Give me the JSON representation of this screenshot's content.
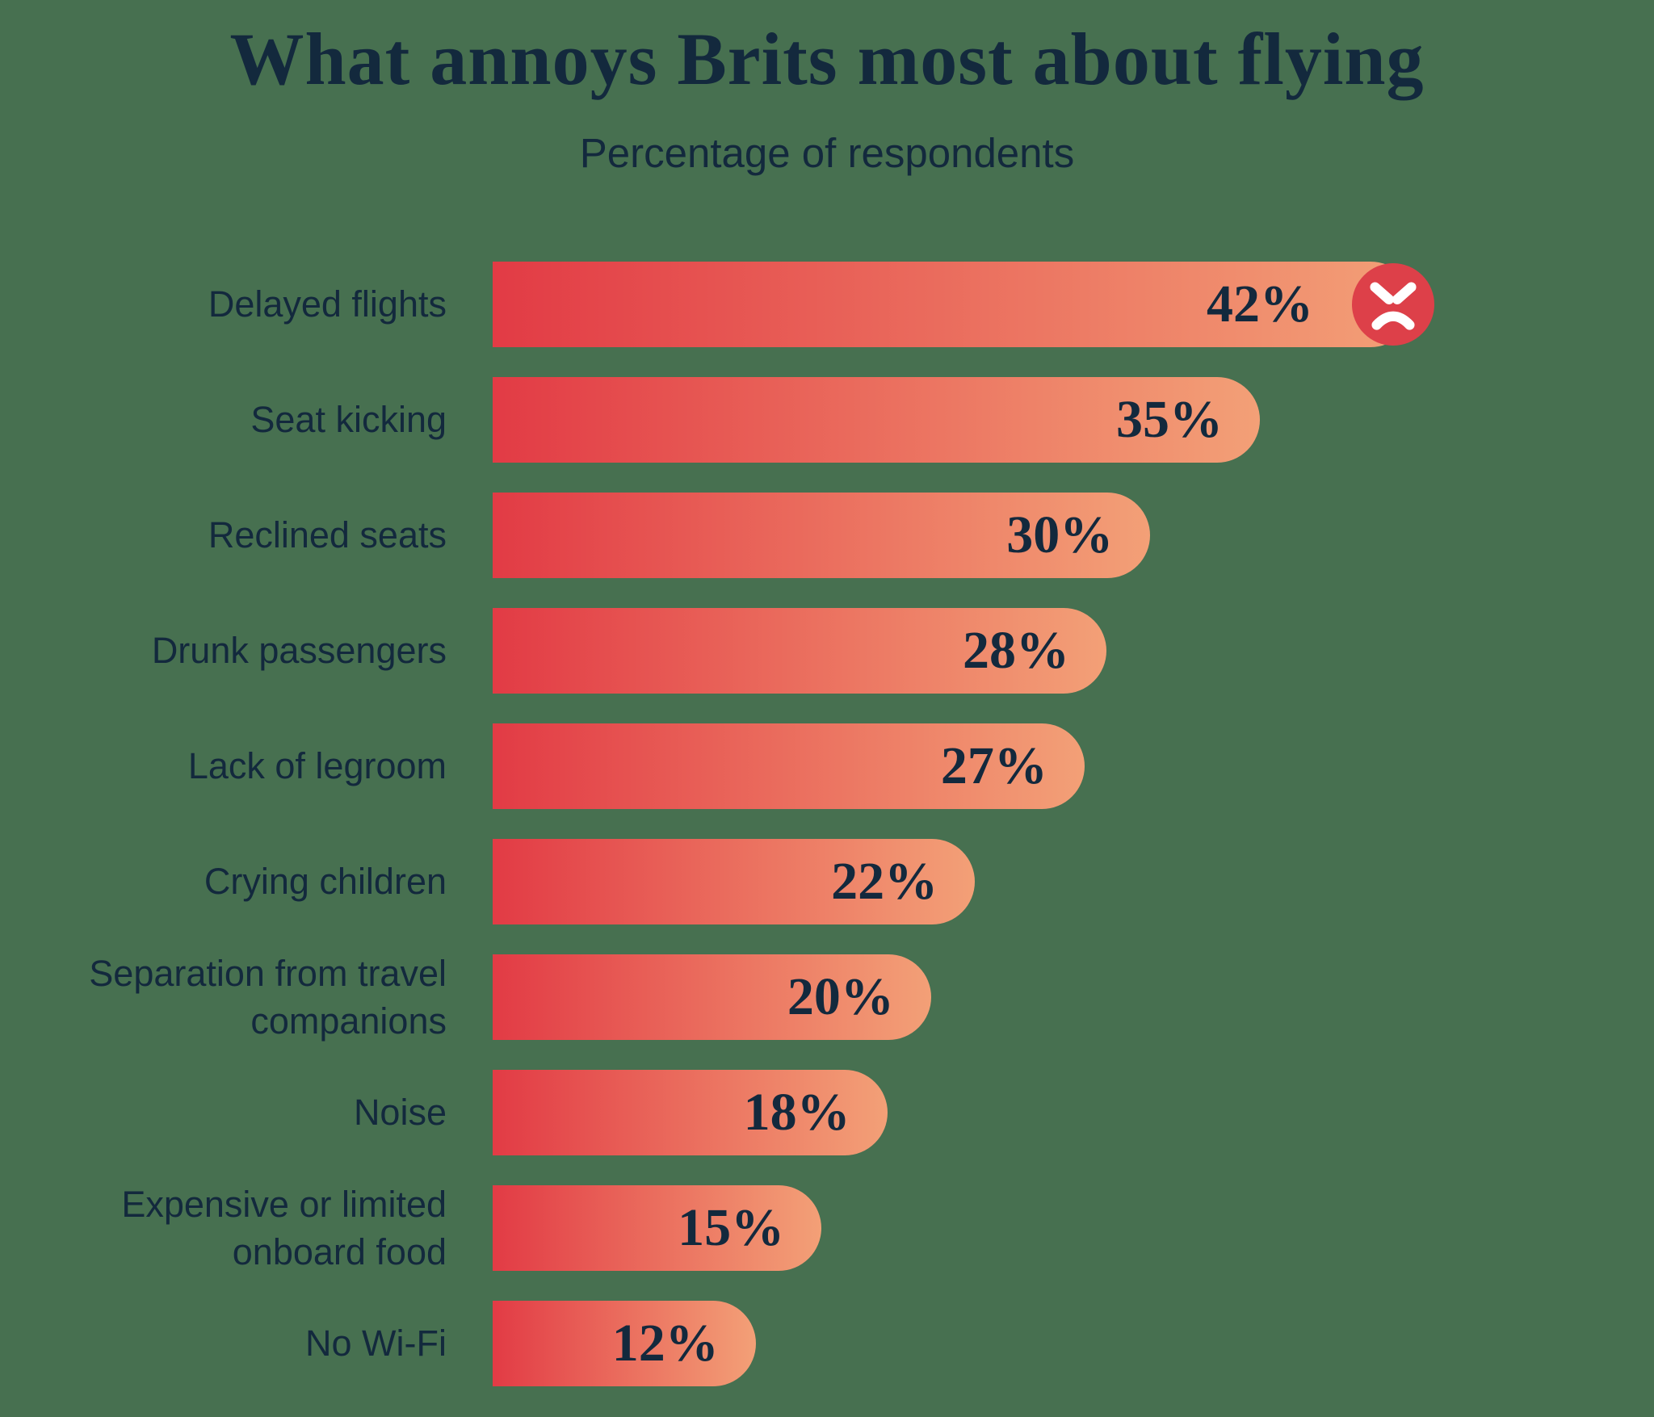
{
  "title": "What annoys Brits most about flying",
  "subtitle": "Percentage of respondents",
  "colors": {
    "background": "#477050",
    "text": "#13293D",
    "bar_gradient_start": "#E23B45",
    "bar_gradient_end": "#F3A077",
    "icon_circle": "#DD4049",
    "icon_face": "#FFFFFF"
  },
  "chart_data": {
    "type": "bar",
    "orientation": "horizontal",
    "title": "What annoys Brits most about flying",
    "subtitle": "Percentage of respondents",
    "xlim": [
      0,
      42
    ],
    "grid": false,
    "legend": false,
    "categories": [
      "Delayed flights",
      "Seat kicking",
      "Reclined seats",
      "Drunk passengers",
      "Lack of legroom",
      "Crying children",
      "Separation from travel companions",
      "Noise",
      "Expensive or limited onboard food",
      "No Wi-Fi"
    ],
    "values": [
      42,
      35,
      30,
      28,
      27,
      22,
      20,
      18,
      15,
      12
    ],
    "rows": [
      {
        "label": "Delayed flights",
        "value": 42,
        "value_label": "42%",
        "icon": "angry-face-icon"
      },
      {
        "label": "Seat kicking",
        "value": 35,
        "value_label": "35%"
      },
      {
        "label": "Reclined seats",
        "value": 30,
        "value_label": "30%"
      },
      {
        "label": "Drunk passengers",
        "value": 28,
        "value_label": "28%"
      },
      {
        "label": "Lack of legroom",
        "value": 27,
        "value_label": "27%"
      },
      {
        "label": "Crying children",
        "value": 22,
        "value_label": "22%"
      },
      {
        "label": "Separation from travel\ncompanions",
        "value": 20,
        "value_label": "20%"
      },
      {
        "label": "Noise",
        "value": 18,
        "value_label": "18%"
      },
      {
        "label": "Expensive or limited\nonboard food",
        "value": 15,
        "value_label": "15%"
      },
      {
        "label": "No Wi-Fi",
        "value": 12,
        "value_label": "12%"
      }
    ]
  }
}
